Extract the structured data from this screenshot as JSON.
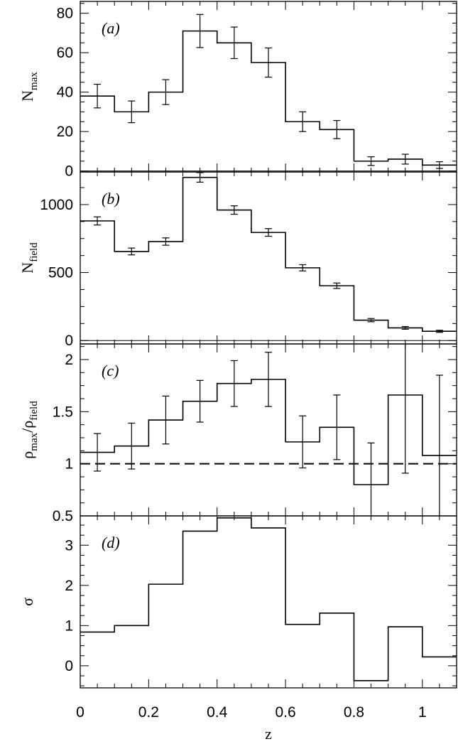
{
  "chart_data": {
    "type": "line",
    "xlabel": "z",
    "xlim": [
      0,
      1.1
    ],
    "x_ticks": [
      0,
      0.2,
      0.4,
      0.6,
      0.8,
      1
    ],
    "x_tick_labels": [
      "0",
      "0.2",
      "0.4",
      "0.6",
      "0.8",
      "1"
    ],
    "bin_edges": [
      0,
      0.1,
      0.2,
      0.3,
      0.4,
      0.5,
      0.6,
      0.7,
      0.8,
      0.9,
      1.0,
      1.1
    ],
    "panels": [
      {
        "label": "(a)",
        "ylabel": "N",
        "ylabel_sub": "max",
        "ylim": [
          -0.5,
          86
        ],
        "y_ticks": [
          0,
          20,
          40,
          60,
          80
        ],
        "y_tick_labels": [
          "0",
          "20",
          "40",
          "60",
          "80"
        ],
        "values": [
          38,
          30,
          40,
          71,
          65,
          55,
          25,
          21,
          5,
          6,
          3
        ],
        "errors": [
          6,
          5.5,
          6.3,
          8.4,
          8,
          7.4,
          5,
          4.6,
          2.2,
          2.5,
          1.7
        ]
      },
      {
        "label": "(b)",
        "ylabel": "N",
        "ylabel_sub": "field",
        "ylim": [
          -25,
          1240
        ],
        "y_ticks": [
          0,
          500,
          1000
        ],
        "y_tick_labels": [
          "0",
          "500",
          "1000"
        ],
        "values": [
          880,
          655,
          728,
          1200,
          960,
          795,
          535,
          403,
          150,
          93,
          68
        ],
        "errors": [
          30,
          25,
          27,
          35,
          31,
          28,
          23,
          20,
          12,
          10,
          8
        ]
      },
      {
        "label": "(c)",
        "ylabel": "ρmax/ρfield",
        "ylim": [
          0.5,
          2.15
        ],
        "y_ticks": [
          0.5,
          1,
          1.5,
          2
        ],
        "y_tick_labels": [
          "0.5",
          "1",
          "1.5",
          "2"
        ],
        "reference_line": 1.0,
        "values": [
          1.11,
          1.17,
          1.42,
          1.6,
          1.77,
          1.81,
          1.21,
          1.35,
          0.8,
          1.66,
          1.08
        ],
        "errors": [
          0.18,
          0.22,
          0.23,
          0.2,
          0.22,
          0.26,
          0.25,
          0.31,
          0.4,
          0.75,
          0.77
        ]
      },
      {
        "label": "(d)",
        "ylabel": "σ",
        "ylim": [
          -0.55,
          3.73
        ],
        "y_ticks": [
          0,
          1,
          2,
          3
        ],
        "y_tick_labels": [
          "0",
          "1",
          "2",
          "3"
        ],
        "values": [
          0.84,
          1.0,
          2.03,
          3.35,
          3.68,
          3.43,
          1.03,
          1.31,
          -0.37,
          0.97,
          0.22
        ]
      }
    ]
  }
}
